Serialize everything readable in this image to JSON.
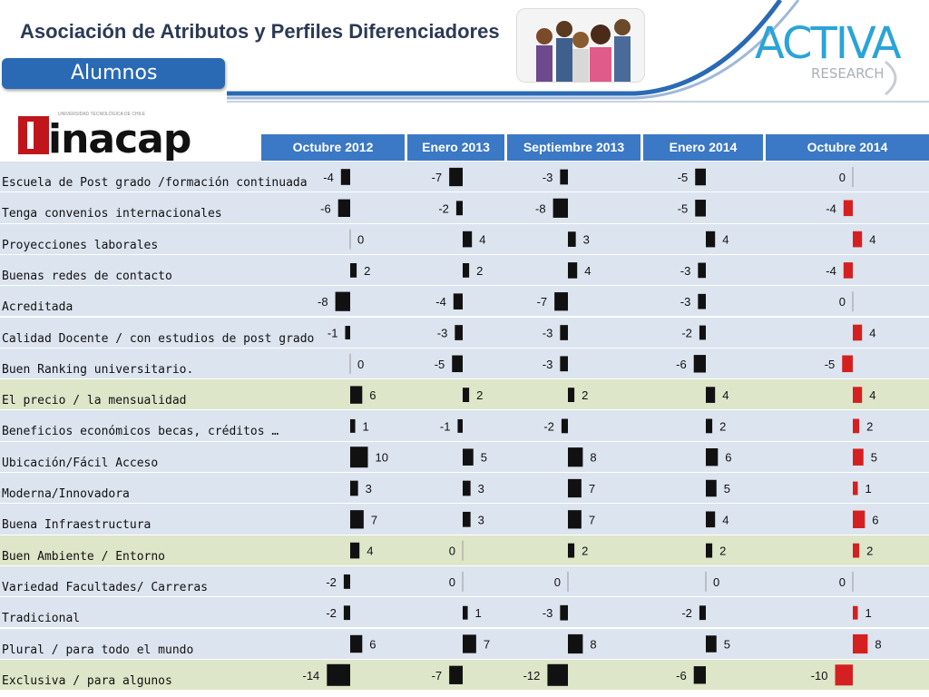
{
  "header": {
    "title": "Asociación de Atributos y Perfiles Diferenciadores",
    "tab_label": "Alumnos"
  },
  "brand": {
    "logo_text": "ACTIVA",
    "logo_subtext": "RESEARCH"
  },
  "institution": {
    "logo_text": "inacap",
    "logo_subtext": "UNIVERSIDAD TECNOLÓGICA DE CHILE"
  },
  "colors": {
    "header_blue": "#3b78c5",
    "row_blue": "#dce4ef",
    "row_green": "#dde6c8",
    "bar_black": "#111111",
    "bar_red": "#d42020",
    "accent_cyan": "#2aa4d8"
  },
  "chart_data": {
    "type": "table",
    "columns": [
      "Octubre 2012",
      "Enero 2013",
      "Septiembre 2013",
      "Enero 2014",
      "Octubre 2014"
    ],
    "rows": [
      {
        "label": "Escuela de Post grado /formación continuada",
        "values": [
          -4,
          -7,
          -3,
          -5,
          0
        ],
        "group": "blue"
      },
      {
        "label": "Tenga convenios internacionales",
        "values": [
          -6,
          -2,
          -8,
          -5,
          -4
        ],
        "group": "blue"
      },
      {
        "label": "Proyecciones laborales",
        "values": [
          0,
          4,
          3,
          4,
          4
        ],
        "group": "blue"
      },
      {
        "label": "Buenas redes de contacto",
        "values": [
          2,
          2,
          4,
          -3,
          -4
        ],
        "group": "blue"
      },
      {
        "label": "Acreditada",
        "values": [
          -8,
          -4,
          -7,
          -3,
          0
        ],
        "group": "blue"
      },
      {
        "label": "Calidad Docente / con estudios de post grado",
        "values": [
          -1,
          -3,
          -3,
          -2,
          4
        ],
        "group": "blue"
      },
      {
        "label": "Buen Ranking universitario.",
        "values": [
          0,
          -5,
          -3,
          -6,
          -5
        ],
        "group": "blue"
      },
      {
        "label": "El precio / la mensualidad",
        "values": [
          6,
          2,
          2,
          4,
          4
        ],
        "group": "green"
      },
      {
        "label": "Beneficios económicos becas, créditos …",
        "values": [
          1,
          -1,
          -2,
          2,
          2
        ],
        "group": "blue"
      },
      {
        "label": "Ubicación/Fácil Acceso",
        "values": [
          10,
          5,
          8,
          6,
          5
        ],
        "group": "blue"
      },
      {
        "label": "Moderna/Innovadora",
        "values": [
          3,
          3,
          7,
          5,
          1
        ],
        "group": "blue"
      },
      {
        "label": " Buena Infraestructura",
        "values": [
          7,
          3,
          7,
          4,
          6
        ],
        "group": "blue"
      },
      {
        "label": "Buen Ambiente / Entorno",
        "values": [
          4,
          0,
          2,
          2,
          2
        ],
        "group": "green"
      },
      {
        "label": "Variedad Facultades/ Carreras",
        "values": [
          -2,
          0,
          0,
          0,
          0
        ],
        "group": "blue"
      },
      {
        "label": "Tradicional",
        "values": [
          -2,
          1,
          -3,
          -2,
          1
        ],
        "group": "blue"
      },
      {
        "label": "Plural / para todo el mundo",
        "values": [
          6,
          7,
          8,
          5,
          8
        ],
        "group": "blue"
      },
      {
        "label": "Exclusiva / para algunos",
        "values": [
          -14,
          -7,
          -12,
          -6,
          -10
        ],
        "group": "green"
      }
    ],
    "series_colors": [
      "#111111",
      "#111111",
      "#111111",
      "#111111",
      "#d42020"
    ]
  }
}
